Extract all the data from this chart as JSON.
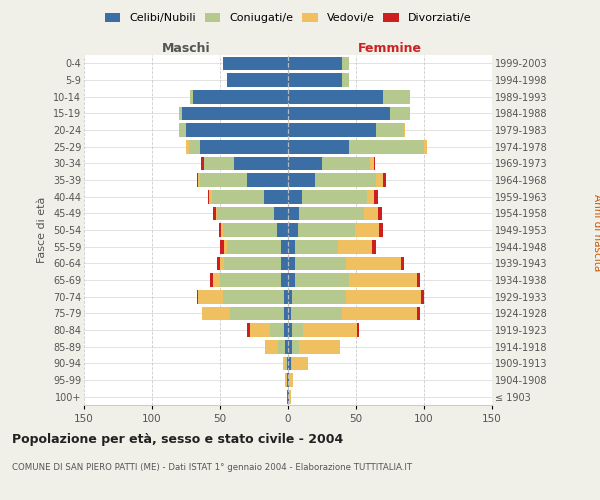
{
  "age_groups": [
    "100+",
    "95-99",
    "90-94",
    "85-89",
    "80-84",
    "75-79",
    "70-74",
    "65-69",
    "60-64",
    "55-59",
    "50-54",
    "45-49",
    "40-44",
    "35-39",
    "30-34",
    "25-29",
    "20-24",
    "15-19",
    "10-14",
    "5-9",
    "0-4"
  ],
  "birth_years": [
    "≤ 1903",
    "1904-1908",
    "1909-1913",
    "1914-1918",
    "1919-1923",
    "1924-1928",
    "1929-1933",
    "1934-1938",
    "1939-1943",
    "1944-1948",
    "1949-1953",
    "1954-1958",
    "1959-1963",
    "1964-1968",
    "1969-1973",
    "1974-1978",
    "1979-1983",
    "1984-1988",
    "1989-1993",
    "1994-1998",
    "1999-2003"
  ],
  "colors": {
    "celibi": "#3a6ea5",
    "coniugati": "#b5c98e",
    "vedovi": "#f0c060",
    "divorziati": "#cc2020"
  },
  "maschi": {
    "celibi": [
      1,
      1,
      1,
      2,
      3,
      3,
      3,
      5,
      5,
      5,
      8,
      10,
      18,
      30,
      40,
      65,
      75,
      78,
      70,
      45,
      48
    ],
    "coniugati": [
      0,
      0,
      1,
      5,
      10,
      40,
      45,
      45,
      42,
      40,
      40,
      42,
      38,
      35,
      22,
      8,
      5,
      2,
      2,
      0,
      0
    ],
    "vedovi": [
      0,
      1,
      2,
      10,
      15,
      20,
      18,
      5,
      3,
      2,
      1,
      1,
      2,
      1,
      0,
      2,
      0,
      0,
      0,
      0,
      0
    ],
    "divorziati": [
      0,
      0,
      0,
      0,
      2,
      0,
      1,
      2,
      2,
      3,
      2,
      2,
      1,
      1,
      2,
      0,
      0,
      0,
      0,
      0,
      0
    ]
  },
  "femmine": {
    "nubili": [
      1,
      1,
      2,
      3,
      3,
      2,
      3,
      5,
      5,
      5,
      7,
      8,
      10,
      20,
      25,
      45,
      65,
      75,
      70,
      40,
      40
    ],
    "coniugate": [
      0,
      0,
      1,
      5,
      8,
      38,
      40,
      40,
      38,
      32,
      42,
      48,
      48,
      45,
      35,
      55,
      20,
      15,
      20,
      5,
      5
    ],
    "vedove": [
      1,
      3,
      12,
      30,
      40,
      55,
      55,
      50,
      40,
      25,
      18,
      10,
      5,
      5,
      3,
      2,
      1,
      0,
      0,
      0,
      0
    ],
    "divorziate": [
      0,
      0,
      0,
      0,
      1,
      2,
      2,
      2,
      2,
      3,
      3,
      3,
      3,
      2,
      1,
      0,
      0,
      0,
      0,
      0,
      0
    ]
  },
  "xlim": 150,
  "title": "Popolazione per età, sesso e stato civile - 2004",
  "subtitle": "COMUNE DI SAN PIERO PATTI (ME) - Dati ISTAT 1° gennaio 2004 - Elaborazione TUTTITALIA.IT",
  "ylabel_left": "Fasce di età",
  "ylabel_right": "Anni di nascita",
  "label_maschi": "Maschi",
  "label_femmine": "Femmine",
  "background_color": "#f0f0e8",
  "plot_bg": "#ffffff",
  "legend": [
    "Celibi/Nubili",
    "Coniugati/e",
    "Vedovi/e",
    "Divorziati/e"
  ]
}
